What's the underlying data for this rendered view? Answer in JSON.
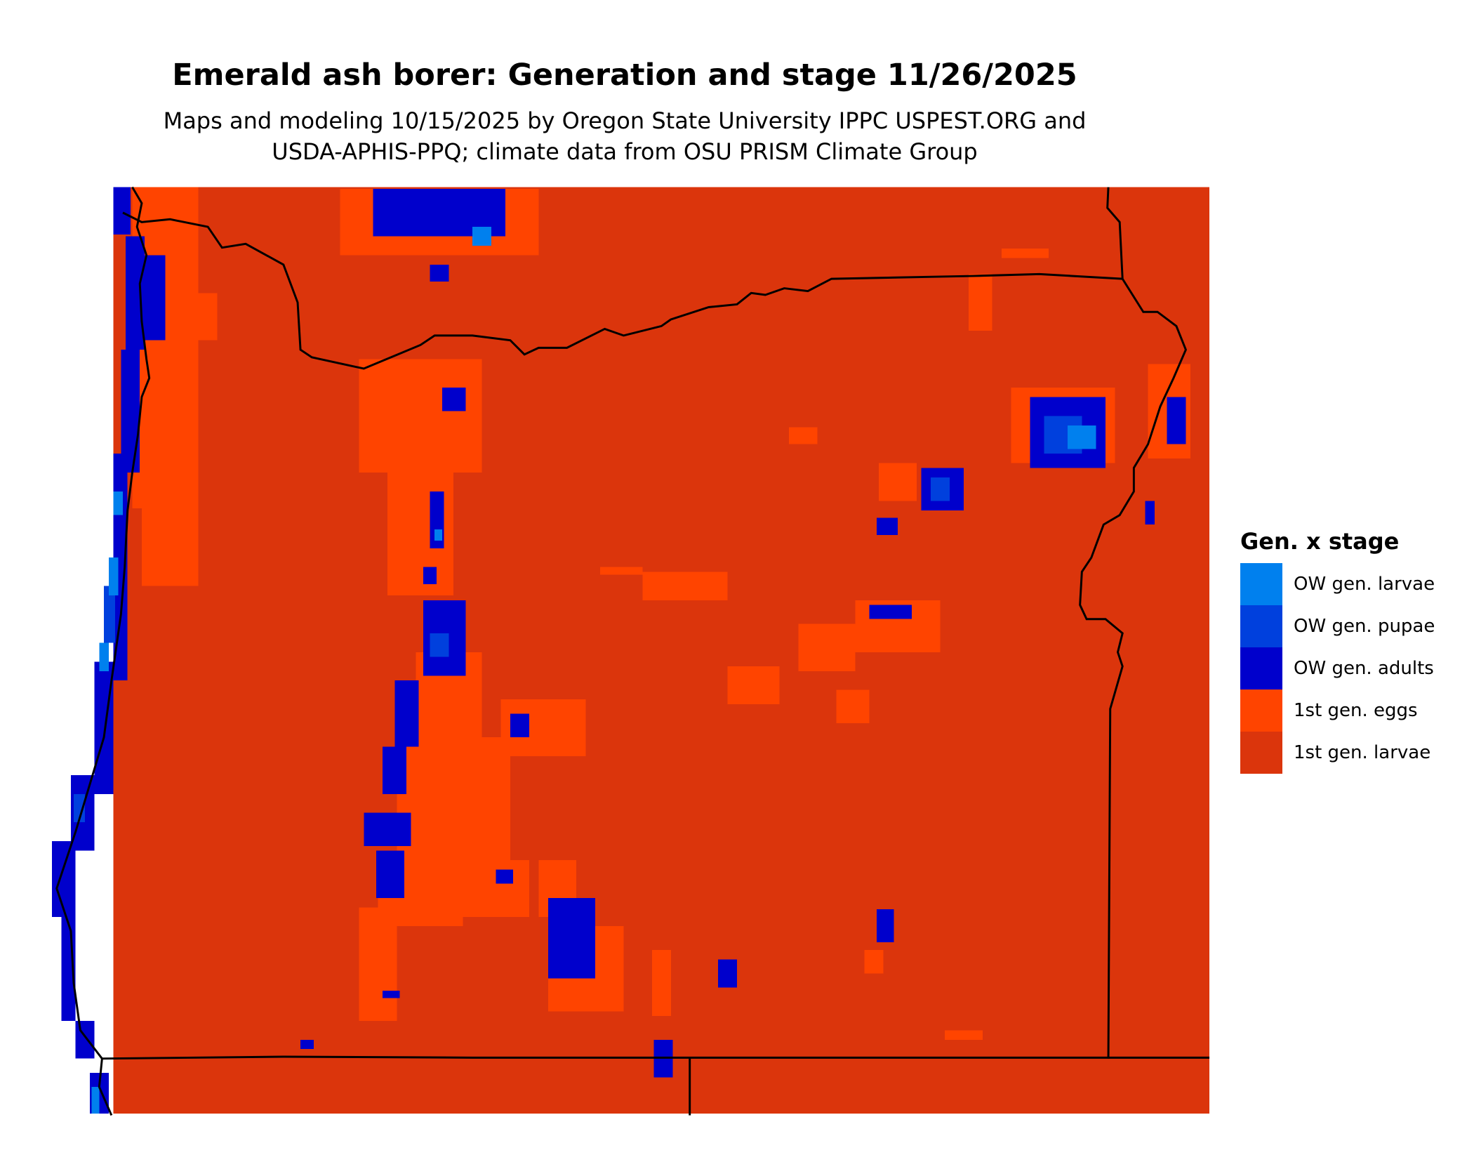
{
  "title": "Emerald ash borer: Generation and stage 11/26/2025",
  "subtitle_line1": "Maps and modeling 10/15/2025 by Oregon State University IPPC USPEST.ORG and",
  "subtitle_line2": "USDA-APHIS-PPQ; climate data from OSU PRISM Climate Group",
  "legend": {
    "title": "Gen. x stage",
    "items": [
      {
        "label": "OW gen. larvae",
        "color": "#0080EE"
      },
      {
        "label": "OW gen. pupae",
        "color": "#0040DD"
      },
      {
        "label": "OW gen. adults",
        "color": "#0000CC"
      },
      {
        "label": "1st gen. eggs",
        "color": "#FF4400"
      },
      {
        "label": "1st gen. larvae",
        "color": "#DB350C"
      }
    ]
  }
}
